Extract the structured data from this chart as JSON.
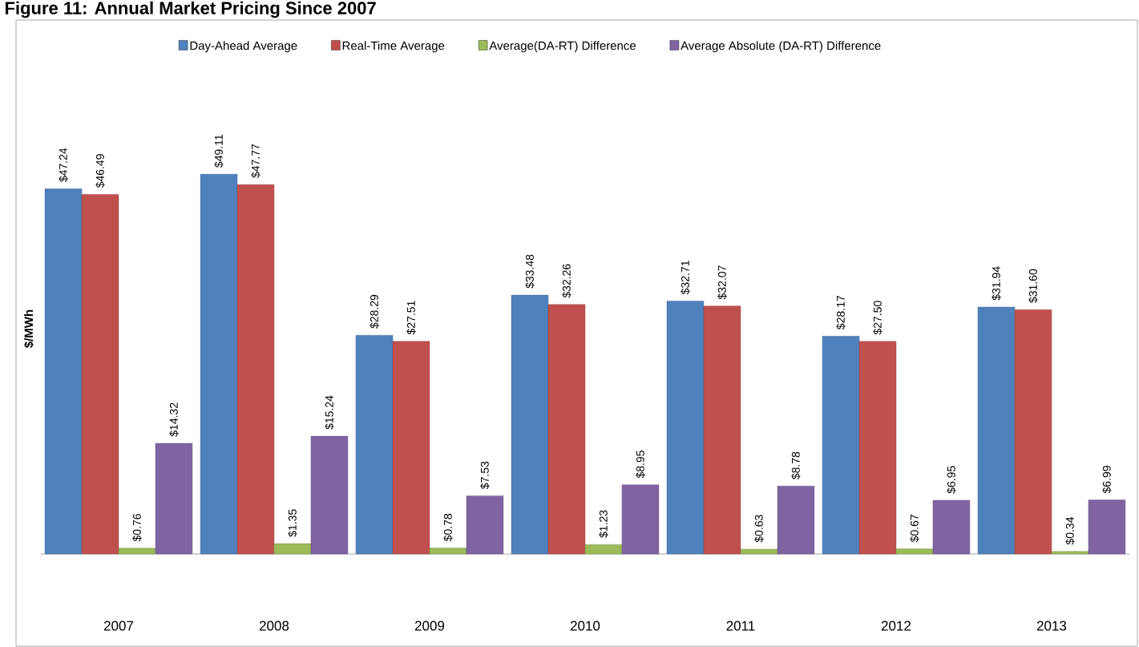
{
  "chart_data": {
    "type": "bar",
    "title": "Figure 11: Annual Market Pricing Since 2007",
    "ylabel": "$/MWh",
    "categories": [
      "2007",
      "2008",
      "2009",
      "2010",
      "2011",
      "2012",
      "2013"
    ],
    "legend": "top",
    "series": [
      {
        "name": "Day-Ahead Average",
        "color": "#4f81bd",
        "values": [
          47.24,
          49.11,
          28.29,
          33.48,
          32.71,
          28.17,
          31.94
        ],
        "value_labels": [
          "$47.24",
          "$49.11",
          "$28.29",
          "$33.48",
          "$32.71",
          "$28.17",
          "$31.94"
        ]
      },
      {
        "name": "Real-Time Average",
        "color": "#c0504d",
        "values": [
          46.49,
          47.77,
          27.51,
          32.26,
          32.07,
          27.5,
          31.6
        ],
        "value_labels": [
          "$46.49",
          "$47.77",
          "$27.51",
          "$32.26",
          "$32.07",
          "$27.50",
          "$31.60"
        ]
      },
      {
        "name": "Average(DA-RT) Difference",
        "color": "#9bbb59",
        "values": [
          0.76,
          1.35,
          0.78,
          1.23,
          0.63,
          0.67,
          0.34
        ],
        "value_labels": [
          "$0.76",
          "$1.35",
          "$0.78",
          "$1.23",
          "$0.63",
          "$0.67",
          "$0.34"
        ]
      },
      {
        "name": "Average Absolute (DA-RT) Difference",
        "color": "#8064a2",
        "values": [
          14.32,
          15.24,
          7.53,
          8.95,
          8.78,
          6.95,
          6.99
        ],
        "value_labels": [
          "$14.32",
          "$15.24",
          "$7.53",
          "$8.95",
          "$8.78",
          "$6.95",
          "$6.99"
        ]
      }
    ]
  }
}
